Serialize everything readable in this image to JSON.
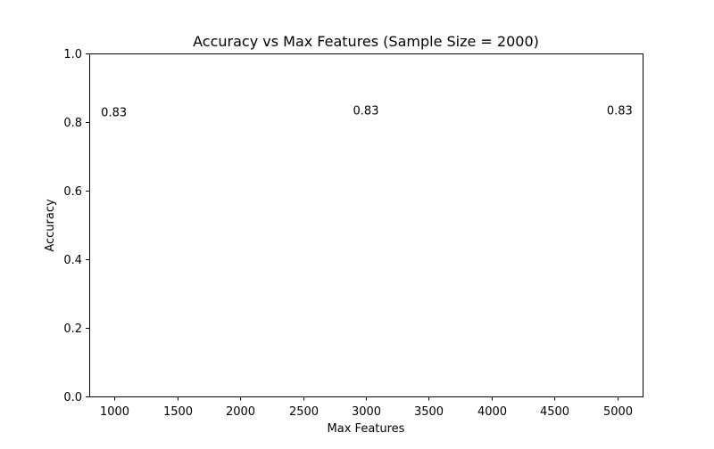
{
  "chart_data": {
    "type": "line",
    "title": "Accuracy vs Max Features (Sample Size = 2000)",
    "xlabel": "Max Features",
    "ylabel": "Accuracy",
    "xlim": [
      800,
      5200
    ],
    "ylim": [
      0.0,
      1.0
    ],
    "xticks": [
      1000,
      1500,
      2000,
      2500,
      3000,
      3500,
      4000,
      4500,
      5000
    ],
    "yticks": [
      0.0,
      0.2,
      0.4,
      0.6,
      0.8,
      1.0
    ],
    "xtick_labels": [
      "1000",
      "1500",
      "2000",
      "2500",
      "3000",
      "3500",
      "4000",
      "4500",
      "5000"
    ],
    "ytick_labels": [
      "0.0",
      "0.2",
      "0.4",
      "0.6",
      "0.8",
      "1.0"
    ],
    "grid": false,
    "series": [
      {
        "x": [
          1000,
          3000,
          5000
        ],
        "values": [
          0.83,
          0.83,
          0.83
        ],
        "labels": [
          "0.83",
          "0.83",
          "0.83"
        ],
        "color": "#1f77b4",
        "line_visible": false
      }
    ]
  }
}
